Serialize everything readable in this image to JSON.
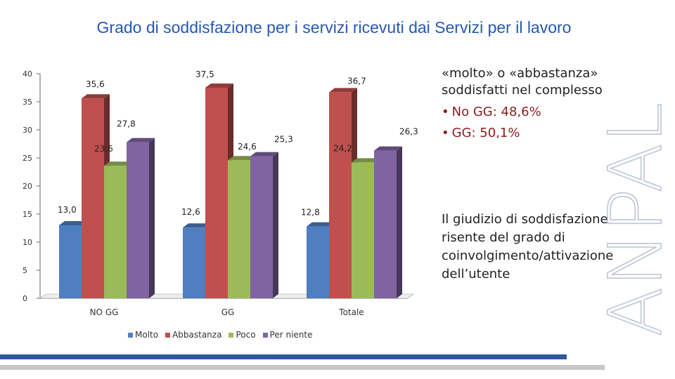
{
  "header": {
    "title": "Grado di soddisfazione per i servizi ricevuti dai Servizi per il lavoro"
  },
  "chart_data": {
    "type": "bar",
    "categories": [
      "NO GG",
      "GG",
      "Totale"
    ],
    "series": [
      {
        "name": "Molto",
        "values": [
          13.0,
          12.6,
          12.8
        ],
        "labels": [
          "13,0",
          "12,6",
          "12,8"
        ]
      },
      {
        "name": "Abbastanza",
        "values": [
          35.6,
          37.5,
          36.7
        ],
        "labels": [
          "35,6",
          "37,5",
          "36,7"
        ]
      },
      {
        "name": "Poco",
        "values": [
          23.6,
          24.6,
          24.2
        ],
        "labels": [
          "23,6",
          "24,6",
          "24,2"
        ]
      },
      {
        "name": "Per niente",
        "values": [
          27.8,
          25.3,
          26.3
        ],
        "labels": [
          "27,8",
          "25,3",
          "26,3"
        ]
      }
    ],
    "colors": [
      "#4f7fbf",
      "#c0504d",
      "#9bbb59",
      "#8064a2"
    ],
    "ylim": [
      0,
      40
    ],
    "yticks": [
      0,
      5,
      10,
      15,
      20,
      25,
      30,
      35,
      40
    ],
    "legend_position": "bottom",
    "grid": false
  },
  "side": {
    "summary": "«molto» o «abbastanza» soddisfatti nel complesso",
    "bullet_1": "No GG: 48,6%",
    "bullet_2": "GG: 50,1%",
    "note": "Il giudizio di soddisfazione risente del grado di coinvolgimento/attivazione dell’utente"
  },
  "watermark": {
    "text": "ANPAL"
  }
}
